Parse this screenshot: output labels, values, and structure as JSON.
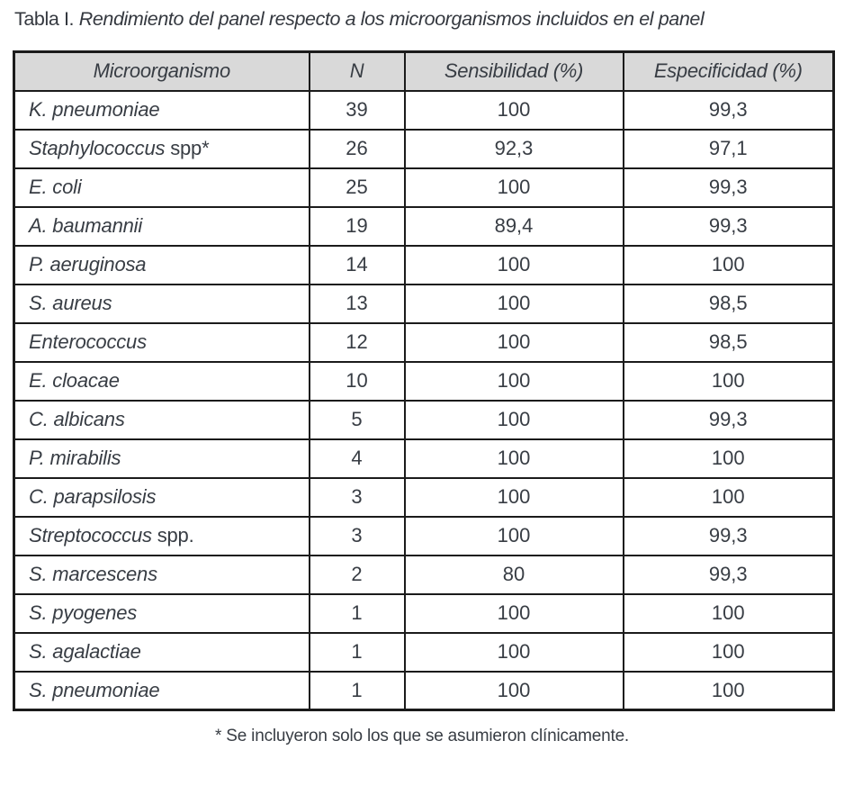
{
  "title": {
    "label": "Tabla I.",
    "text": " Rendimiento del panel respecto a los microorganismos incluidos en el panel"
  },
  "table": {
    "headers": [
      "Microorganismo",
      "N",
      "Sensibilidad (%)",
      "Especificidad (%)"
    ],
    "rows": [
      {
        "name": "K. pneumoniae",
        "suffix": "",
        "n": "39",
        "sens": "100",
        "esp": "99,3"
      },
      {
        "name": "Staphylococcus",
        "suffix": " spp*",
        "n": "26",
        "sens": "92,3",
        "esp": "97,1"
      },
      {
        "name": "E. coli",
        "suffix": "",
        "n": "25",
        "sens": "100",
        "esp": "99,3"
      },
      {
        "name": "A. baumannii",
        "suffix": "",
        "n": "19",
        "sens": "89,4",
        "esp": "99,3"
      },
      {
        "name": "P. aeruginosa",
        "suffix": "",
        "n": "14",
        "sens": "100",
        "esp": "100"
      },
      {
        "name": "S. aureus",
        "suffix": "",
        "n": "13",
        "sens": "100",
        "esp": "98,5"
      },
      {
        "name": "Enterococcus",
        "suffix": "",
        "n": "12",
        "sens": "100",
        "esp": "98,5"
      },
      {
        "name": "E. cloacae",
        "suffix": "",
        "n": "10",
        "sens": "100",
        "esp": "100"
      },
      {
        "name": "C. albicans",
        "suffix": "",
        "n": "5",
        "sens": "100",
        "esp": "99,3"
      },
      {
        "name": "P. mirabilis",
        "suffix": "",
        "n": "4",
        "sens": "100",
        "esp": "100"
      },
      {
        "name": "C. parapsilosis",
        "suffix": "",
        "n": "3",
        "sens": "100",
        "esp": "100"
      },
      {
        "name": "Streptococcus",
        "suffix": " spp.",
        "n": "3",
        "sens": "100",
        "esp": "99,3"
      },
      {
        "name": "S. marcescens",
        "suffix": "",
        "n": "2",
        "sens": "80",
        "esp": "99,3"
      },
      {
        "name": "S. pyogenes",
        "suffix": "",
        "n": "1",
        "sens": "100",
        "esp": "100"
      },
      {
        "name": "S. agalactiae",
        "suffix": "",
        "n": "1",
        "sens": "100",
        "esp": "100"
      },
      {
        "name": "S. pneumoniae",
        "suffix": "",
        "n": "1",
        "sens": "100",
        "esp": "100"
      }
    ]
  },
  "footnote": "* Se incluyeron solo los que se asumieron clínicamente.",
  "colors": {
    "header_bg": "#d9d9d9",
    "border": "#1b1b1b",
    "text": "#383d44",
    "background": "#ffffff"
  }
}
